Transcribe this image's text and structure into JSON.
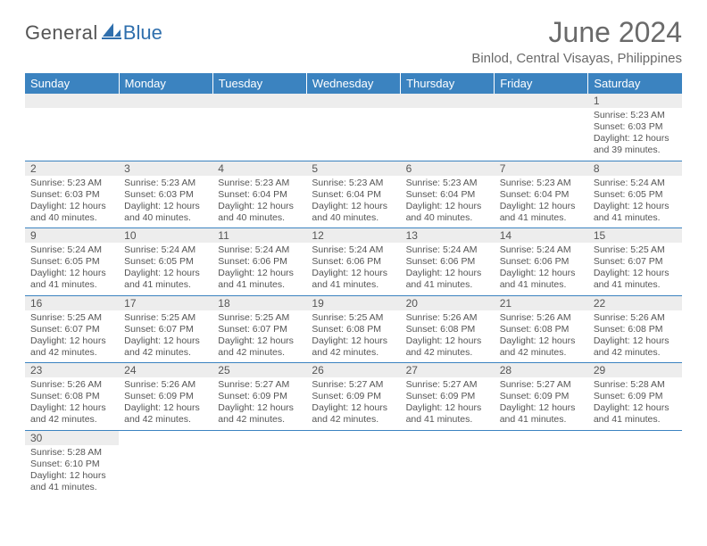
{
  "brand": {
    "general": "General",
    "blue": "Blue"
  },
  "title": "June 2024",
  "location": "Binlod, Central Visayas, Philippines",
  "colors": {
    "header_bg": "#3b83c0",
    "header_text": "#ffffff",
    "grid_line": "#3b83c0",
    "daynum_bg": "#ededed",
    "text": "#555555",
    "background": "#ffffff"
  },
  "daysOfWeek": [
    "Sunday",
    "Monday",
    "Tuesday",
    "Wednesday",
    "Thursday",
    "Friday",
    "Saturday"
  ],
  "startWeekday": 6,
  "daysInMonth": 30,
  "cells": {
    "1": {
      "sunrise": "5:23 AM",
      "sunset": "6:03 PM",
      "daylight": "12 hours and 39 minutes."
    },
    "2": {
      "sunrise": "5:23 AM",
      "sunset": "6:03 PM",
      "daylight": "12 hours and 40 minutes."
    },
    "3": {
      "sunrise": "5:23 AM",
      "sunset": "6:03 PM",
      "daylight": "12 hours and 40 minutes."
    },
    "4": {
      "sunrise": "5:23 AM",
      "sunset": "6:04 PM",
      "daylight": "12 hours and 40 minutes."
    },
    "5": {
      "sunrise": "5:23 AM",
      "sunset": "6:04 PM",
      "daylight": "12 hours and 40 minutes."
    },
    "6": {
      "sunrise": "5:23 AM",
      "sunset": "6:04 PM",
      "daylight": "12 hours and 40 minutes."
    },
    "7": {
      "sunrise": "5:23 AM",
      "sunset": "6:04 PM",
      "daylight": "12 hours and 41 minutes."
    },
    "8": {
      "sunrise": "5:24 AM",
      "sunset": "6:05 PM",
      "daylight": "12 hours and 41 minutes."
    },
    "9": {
      "sunrise": "5:24 AM",
      "sunset": "6:05 PM",
      "daylight": "12 hours and 41 minutes."
    },
    "10": {
      "sunrise": "5:24 AM",
      "sunset": "6:05 PM",
      "daylight": "12 hours and 41 minutes."
    },
    "11": {
      "sunrise": "5:24 AM",
      "sunset": "6:06 PM",
      "daylight": "12 hours and 41 minutes."
    },
    "12": {
      "sunrise": "5:24 AM",
      "sunset": "6:06 PM",
      "daylight": "12 hours and 41 minutes."
    },
    "13": {
      "sunrise": "5:24 AM",
      "sunset": "6:06 PM",
      "daylight": "12 hours and 41 minutes."
    },
    "14": {
      "sunrise": "5:24 AM",
      "sunset": "6:06 PM",
      "daylight": "12 hours and 41 minutes."
    },
    "15": {
      "sunrise": "5:25 AM",
      "sunset": "6:07 PM",
      "daylight": "12 hours and 41 minutes."
    },
    "16": {
      "sunrise": "5:25 AM",
      "sunset": "6:07 PM",
      "daylight": "12 hours and 42 minutes."
    },
    "17": {
      "sunrise": "5:25 AM",
      "sunset": "6:07 PM",
      "daylight": "12 hours and 42 minutes."
    },
    "18": {
      "sunrise": "5:25 AM",
      "sunset": "6:07 PM",
      "daylight": "12 hours and 42 minutes."
    },
    "19": {
      "sunrise": "5:25 AM",
      "sunset": "6:08 PM",
      "daylight": "12 hours and 42 minutes."
    },
    "20": {
      "sunrise": "5:26 AM",
      "sunset": "6:08 PM",
      "daylight": "12 hours and 42 minutes."
    },
    "21": {
      "sunrise": "5:26 AM",
      "sunset": "6:08 PM",
      "daylight": "12 hours and 42 minutes."
    },
    "22": {
      "sunrise": "5:26 AM",
      "sunset": "6:08 PM",
      "daylight": "12 hours and 42 minutes."
    },
    "23": {
      "sunrise": "5:26 AM",
      "sunset": "6:08 PM",
      "daylight": "12 hours and 42 minutes."
    },
    "24": {
      "sunrise": "5:26 AM",
      "sunset": "6:09 PM",
      "daylight": "12 hours and 42 minutes."
    },
    "25": {
      "sunrise": "5:27 AM",
      "sunset": "6:09 PM",
      "daylight": "12 hours and 42 minutes."
    },
    "26": {
      "sunrise": "5:27 AM",
      "sunset": "6:09 PM",
      "daylight": "12 hours and 42 minutes."
    },
    "27": {
      "sunrise": "5:27 AM",
      "sunset": "6:09 PM",
      "daylight": "12 hours and 41 minutes."
    },
    "28": {
      "sunrise": "5:27 AM",
      "sunset": "6:09 PM",
      "daylight": "12 hours and 41 minutes."
    },
    "29": {
      "sunrise": "5:28 AM",
      "sunset": "6:09 PM",
      "daylight": "12 hours and 41 minutes."
    },
    "30": {
      "sunrise": "5:28 AM",
      "sunset": "6:10 PM",
      "daylight": "12 hours and 41 minutes."
    }
  },
  "labels": {
    "sunrise": "Sunrise:",
    "sunset": "Sunset:",
    "daylight": "Daylight:"
  }
}
